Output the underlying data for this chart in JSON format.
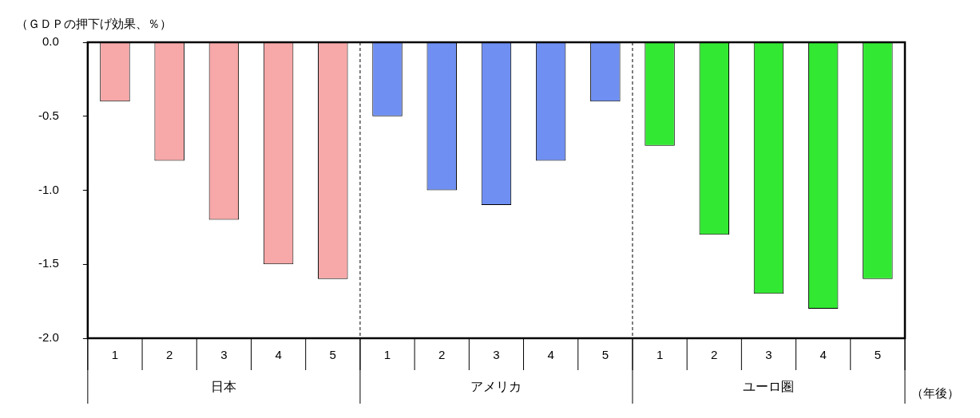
{
  "chart_data": {
    "type": "bar",
    "ylabel": "（ＧＤＰの押下げ効果、％）",
    "xlabel": "（年後）",
    "categories": [
      "1",
      "2",
      "3",
      "4",
      "5",
      "1",
      "2",
      "3",
      "4",
      "5",
      "1",
      "2",
      "3",
      "4",
      "5"
    ],
    "values": [
      -0.4,
      -0.8,
      -1.2,
      -1.5,
      -1.6,
      -0.5,
      -1.0,
      -1.1,
      -0.8,
      -0.4,
      -0.7,
      -1.3,
      -1.7,
      -1.8,
      -1.6
    ],
    "colors": [
      "#f7a8a8",
      "#f7a8a8",
      "#f7a8a8",
      "#f7a8a8",
      "#f7a8a8",
      "#6f8ff2",
      "#6f8ff2",
      "#6f8ff2",
      "#6f8ff2",
      "#6f8ff2",
      "#33e833",
      "#33e833",
      "#33e833",
      "#33e833",
      "#33e833"
    ],
    "annotations": [
      "日本",
      "アメリカ",
      "ユーロ圏"
    ],
    "ylim": [
      -2.0,
      0.0
    ],
    "yticks": [
      {
        "value": -2.0,
        "label": "-2.0"
      },
      {
        "value": -1.5,
        "label": "-1.5"
      },
      {
        "value": -1.0,
        "label": "-1.0"
      },
      {
        "value": -0.5,
        "label": "-0.5"
      },
      {
        "value": 0.0,
        "label": "0.0"
      }
    ],
    "grid": false,
    "legend": false
  }
}
